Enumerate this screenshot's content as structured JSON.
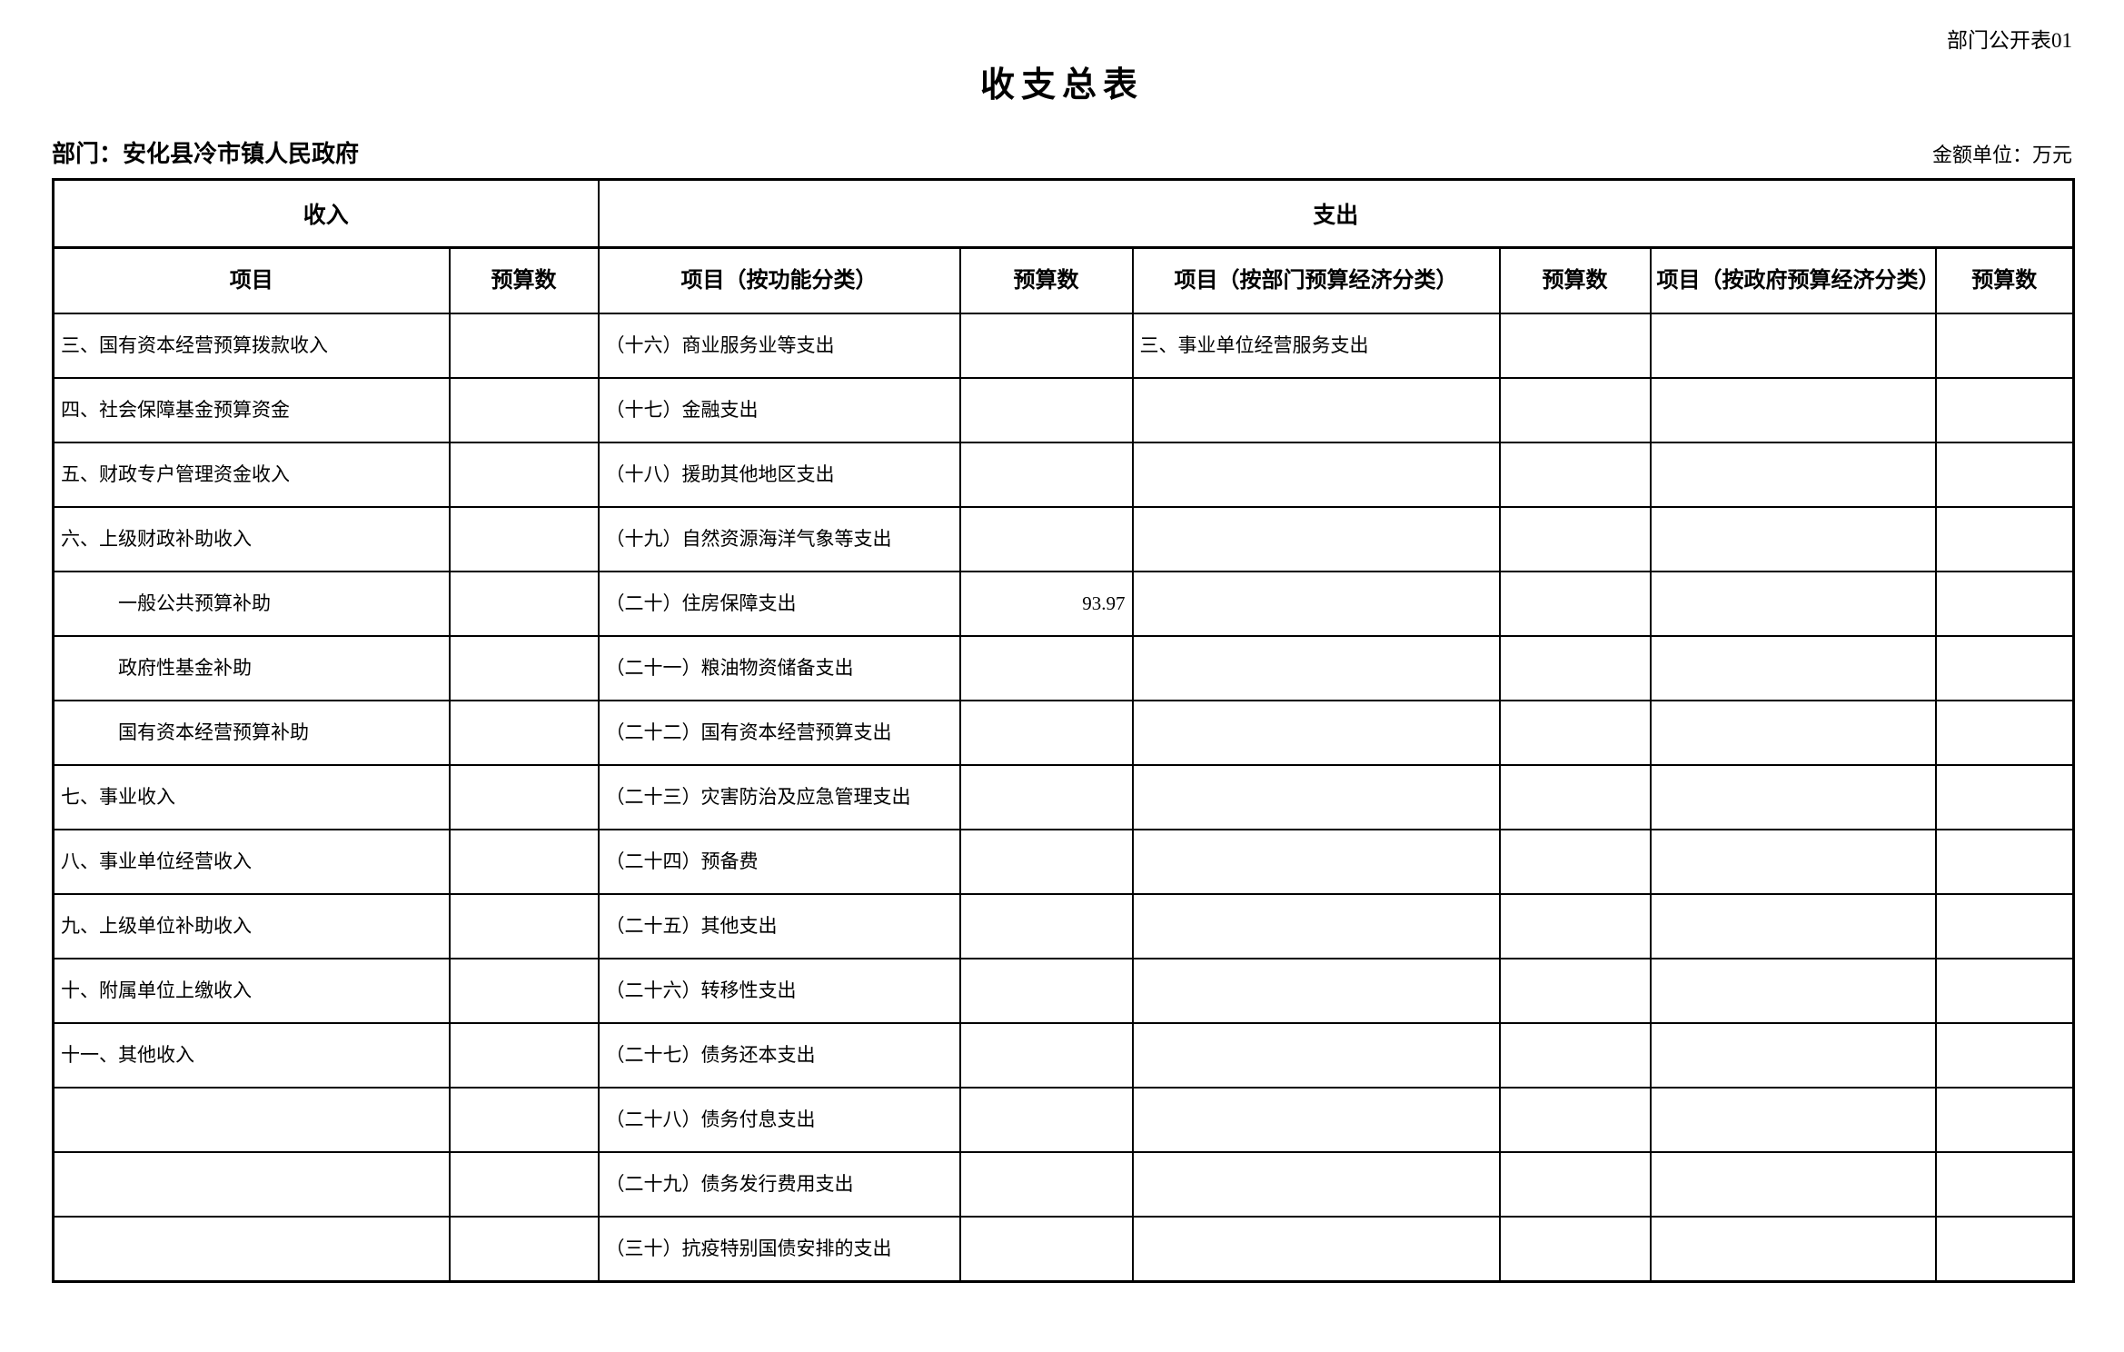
{
  "page": {
    "doc_label": "部门公开表01",
    "title": "收支总表",
    "department_label": "部门：安化县冷市镇人民政府",
    "unit_label": "金额单位：万元"
  },
  "table": {
    "group_headers": {
      "income": "收入",
      "expenditure": "支出"
    },
    "column_headers": [
      "项目",
      "预算数",
      "项目（按功能分类）",
      "预算数",
      "项目（按部门预算经济分类）",
      "预算数",
      "项目（按政府预算经济分类）",
      "预算数"
    ],
    "rows": [
      [
        "三、国有资本经营预算拨款收入",
        "",
        "（十六）商业服务业等支出",
        "",
        "三、事业单位经营服务支出",
        "",
        "",
        ""
      ],
      [
        "四、社会保障基金预算资金",
        "",
        "（十七）金融支出",
        "",
        "",
        "",
        "",
        ""
      ],
      [
        "五、财政专户管理资金收入",
        "",
        "（十八）援助其他地区支出",
        "",
        "",
        "",
        "",
        ""
      ],
      [
        "六、上级财政补助收入",
        "",
        "（十九）自然资源海洋气象等支出",
        "",
        "",
        "",
        "",
        ""
      ],
      [
        "　　　一般公共预算补助",
        "",
        "（二十）住房保障支出",
        "93.97",
        "",
        "",
        "",
        ""
      ],
      [
        "　　　政府性基金补助",
        "",
        "（二十一）粮油物资储备支出",
        "",
        "",
        "",
        "",
        ""
      ],
      [
        "　　　国有资本经营预算补助",
        "",
        "（二十二）国有资本经营预算支出",
        "",
        "",
        "",
        "",
        ""
      ],
      [
        "七、事业收入",
        "",
        "（二十三）灾害防治及应急管理支出",
        "",
        "",
        "",
        "",
        ""
      ],
      [
        "八、事业单位经营收入",
        "",
        "（二十四）预备费",
        "",
        "",
        "",
        "",
        ""
      ],
      [
        "九、上级单位补助收入",
        "",
        "（二十五）其他支出",
        "",
        "",
        "",
        "",
        ""
      ],
      [
        "十、附属单位上缴收入",
        "",
        "（二十六）转移性支出",
        "",
        "",
        "",
        "",
        ""
      ],
      [
        "十一、其他收入",
        "",
        "（二十七）债务还本支出",
        "",
        "",
        "",
        "",
        ""
      ],
      [
        "",
        "",
        "（二十八）债务付息支出",
        "",
        "",
        "",
        "",
        ""
      ],
      [
        "",
        "",
        "（二十九）债务发行费用支出",
        "",
        "",
        "",
        "",
        ""
      ],
      [
        "",
        "",
        "（三十）抗疫特别国债安排的支出",
        "",
        "",
        "",
        "",
        ""
      ]
    ]
  }
}
